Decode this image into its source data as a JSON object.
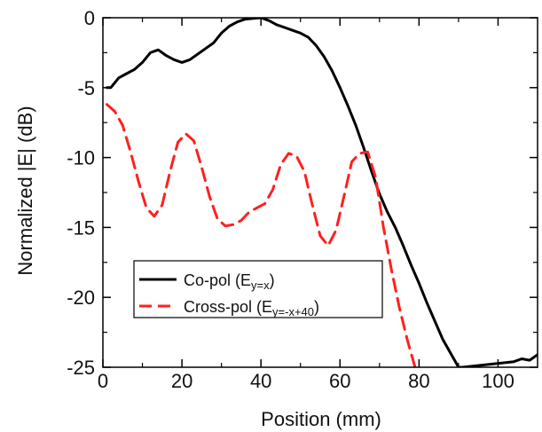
{
  "chart_data": {
    "type": "line",
    "title": "",
    "xlabel": "Position (mm)",
    "ylabel": "Normalized |E| (dB)",
    "xlim": [
      0,
      110
    ],
    "ylim": [
      -25,
      0
    ],
    "xticks": [
      "0",
      "20",
      "40",
      "60",
      "80",
      "100"
    ],
    "yticks": [
      "0",
      "-5",
      "-10",
      "-15",
      "-20",
      "-25"
    ],
    "grid": false,
    "legend_position": "lower-left",
    "series": [
      {
        "name": "Co-pol (Ey=x)",
        "legend_main": "Co-pol (E",
        "legend_sub": "y=x",
        "legend_close": ")",
        "color": "#000000",
        "dash": "solid",
        "x": [
          1,
          2,
          4,
          6,
          8,
          10,
          12,
          14,
          16,
          18,
          20,
          22,
          24,
          26,
          28,
          30,
          32,
          34,
          36,
          38,
          40,
          42,
          44,
          46,
          48,
          50,
          52,
          54,
          56,
          58,
          60,
          62,
          64,
          66,
          68,
          70,
          72,
          74,
          76,
          78,
          80,
          82,
          84,
          86,
          88,
          90,
          91,
          104,
          106,
          108,
          110
        ],
        "y": [
          -5.0,
          -5.0,
          -4.3,
          -4.0,
          -3.7,
          -3.2,
          -2.5,
          -2.3,
          -2.7,
          -3.0,
          -3.2,
          -3.0,
          -2.6,
          -2.2,
          -1.8,
          -1.1,
          -0.6,
          -0.3,
          -0.1,
          -0.05,
          0.0,
          -0.2,
          -0.5,
          -0.7,
          -0.9,
          -1.1,
          -1.4,
          -2.0,
          -2.8,
          -3.8,
          -5.0,
          -6.3,
          -7.7,
          -9.3,
          -11.0,
          -12.6,
          -13.9,
          -15.0,
          -16.3,
          -17.7,
          -19.0,
          -20.4,
          -21.7,
          -23.0,
          -24.0,
          -25.0,
          -25.0,
          -24.6,
          -24.4,
          -24.5,
          -24.1
        ]
      },
      {
        "name": "Cross-pol (Ey=-x+40)",
        "legend_main": "Cross-pol (E",
        "legend_sub": "y=-x+40",
        "legend_close": ")",
        "color": "#ff2020",
        "dash": "dashed",
        "x": [
          1,
          3,
          5,
          7,
          9,
          11,
          13,
          15,
          17,
          19,
          21,
          23,
          25,
          27,
          29,
          31,
          33,
          35,
          37,
          39,
          41,
          43,
          45,
          47,
          49,
          51,
          53,
          55,
          57,
          59,
          61,
          63,
          65,
          67,
          69,
          71,
          73,
          75,
          77,
          79
        ],
        "y": [
          -6.2,
          -6.7,
          -7.7,
          -9.6,
          -11.7,
          -13.6,
          -14.2,
          -13.4,
          -11.0,
          -8.9,
          -8.3,
          -8.8,
          -10.7,
          -12.8,
          -14.4,
          -14.9,
          -14.8,
          -14.5,
          -13.9,
          -13.6,
          -13.3,
          -12.3,
          -10.5,
          -9.7,
          -9.9,
          -11.0,
          -13.4,
          -15.6,
          -16.3,
          -15.2,
          -12.8,
          -10.3,
          -9.7,
          -9.6,
          -11.4,
          -15.0,
          -18.0,
          -20.7,
          -23.0,
          -25.0
        ]
      }
    ]
  }
}
